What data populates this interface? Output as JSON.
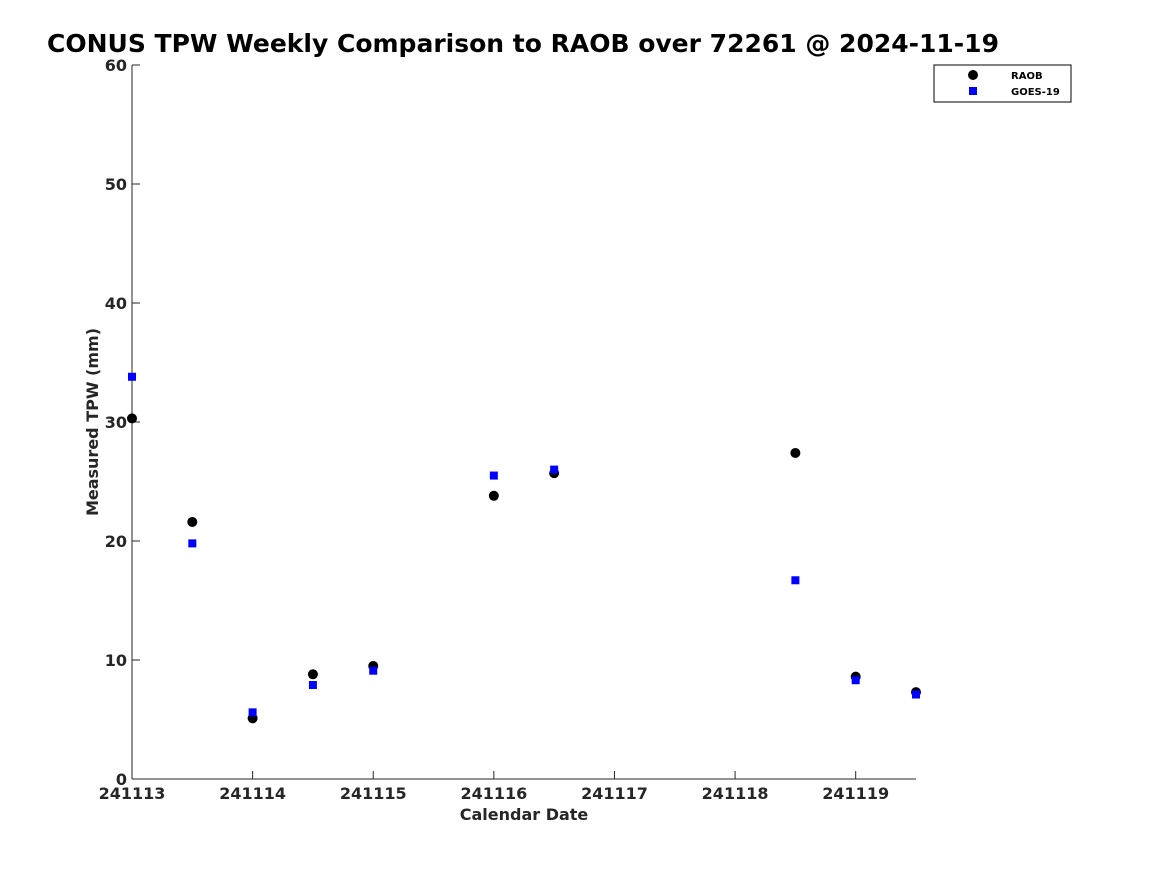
{
  "chart_data": {
    "type": "scatter",
    "title": "CONUS TPW Weekly Comparison to RAOB over 72261 @ 2024-11-19",
    "xlabel": "Calendar Date",
    "ylabel": "Measured TPW (mm)",
    "xlim": [
      "2024-11-13",
      "2024-11-19 12:00"
    ],
    "ylim": [
      0,
      60
    ],
    "x_ticks": [
      {
        "value": "2024-11-13",
        "label": "241113"
      },
      {
        "value": "2024-11-14",
        "label": "241114"
      },
      {
        "value": "2024-11-15",
        "label": "241115"
      },
      {
        "value": "2024-11-16",
        "label": "241116"
      },
      {
        "value": "2024-11-17",
        "label": "241117"
      },
      {
        "value": "2024-11-18",
        "label": "241118"
      },
      {
        "value": "2024-11-19",
        "label": "241119"
      }
    ],
    "y_ticks": [
      0,
      10,
      20,
      30,
      40,
      50,
      60
    ],
    "grid": false,
    "legend": "top-right",
    "series": [
      {
        "name": "RAOB",
        "marker": "circle",
        "color": "#000000",
        "points": [
          {
            "x": "2024-11-13 00:00",
            "y": 30.3
          },
          {
            "x": "2024-11-13 12:00",
            "y": 21.6
          },
          {
            "x": "2024-11-14 00:00",
            "y": 5.1
          },
          {
            "x": "2024-11-14 12:00",
            "y": 8.8
          },
          {
            "x": "2024-11-15 00:00",
            "y": 9.5
          },
          {
            "x": "2024-11-16 00:00",
            "y": 23.8
          },
          {
            "x": "2024-11-16 12:00",
            "y": 25.7
          },
          {
            "x": "2024-11-18 12:00",
            "y": 27.4
          },
          {
            "x": "2024-11-19 00:00",
            "y": 8.6
          },
          {
            "x": "2024-11-19 12:00",
            "y": 7.3
          }
        ]
      },
      {
        "name": "GOES-19",
        "marker": "square",
        "color": "#0000ff",
        "points": [
          {
            "x": "2024-11-13 00:00",
            "y": 33.8
          },
          {
            "x": "2024-11-13 12:00",
            "y": 19.8
          },
          {
            "x": "2024-11-14 00:00",
            "y": 5.6
          },
          {
            "x": "2024-11-14 12:00",
            "y": 7.9
          },
          {
            "x": "2024-11-15 00:00",
            "y": 9.1
          },
          {
            "x": "2024-11-16 00:00",
            "y": 25.5
          },
          {
            "x": "2024-11-16 12:00",
            "y": 26.0
          },
          {
            "x": "2024-11-18 12:00",
            "y": 16.7
          },
          {
            "x": "2024-11-19 00:00",
            "y": 8.3
          },
          {
            "x": "2024-11-19 12:00",
            "y": 7.1
          }
        ]
      }
    ]
  }
}
